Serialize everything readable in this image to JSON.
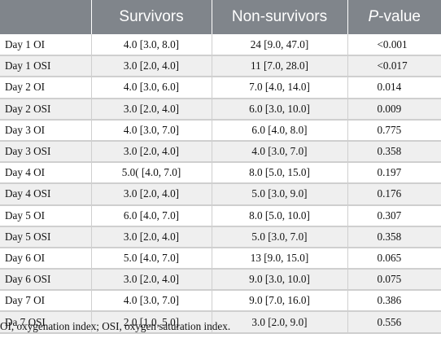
{
  "table": {
    "headers": {
      "col0": "",
      "col1": "Survivors",
      "col2": "Non-survivors",
      "col3_italic": "P",
      "col3_rest": "-value"
    },
    "rows": [
      {
        "label": "Day 1 OI",
        "survivors": "4.0 [3.0, 8.0]",
        "non_survivors": "24 [9.0, 47.0]",
        "p_value": "<0.001"
      },
      {
        "label": "Day 1 OSI",
        "survivors": "3.0 [2.0, 4.0]",
        "non_survivors": "11 [7.0, 28.0]",
        "p_value": "<0.017"
      },
      {
        "label": "Day 2 OI",
        "survivors": "4.0 [3.0, 6.0]",
        "non_survivors": "7.0 [4.0, 14.0]",
        "p_value": "0.014"
      },
      {
        "label": "Day 2 OSI",
        "survivors": "3.0 [2.0, 4.0]",
        "non_survivors": "6.0 [3.0, 10.0]",
        "p_value": "0.009"
      },
      {
        "label": "Day 3 OI",
        "survivors": "4.0 [3.0, 7.0]",
        "non_survivors": "6.0 [4.0, 8.0]",
        "p_value": "0.775"
      },
      {
        "label": "Day 3 OSI",
        "survivors": "3.0 [2.0, 4.0]",
        "non_survivors": "4.0 [3.0, 7.0]",
        "p_value": "0.358"
      },
      {
        "label": "Day 4 OI",
        "survivors": "5.0( [4.0, 7.0]",
        "non_survivors": "8.0 [5.0, 15.0]",
        "p_value": "0.197"
      },
      {
        "label": "Day 4 OSI",
        "survivors": "3.0 [2.0, 4.0]",
        "non_survivors": "5.0 [3.0, 9.0]",
        "p_value": "0.176"
      },
      {
        "label": "Day 5 OI",
        "survivors": "6.0 [4.0, 7.0]",
        "non_survivors": "8.0 [5.0, 10.0]",
        "p_value": "0.307"
      },
      {
        "label": "Day 5 OSI",
        "survivors": "3.0 [2.0, 4.0]",
        "non_survivors": "5.0 [3.0, 7.0]",
        "p_value": "0.358"
      },
      {
        "label": "Day 6 OI",
        "survivors": "5.0 [4.0, 7.0]",
        "non_survivors": "13 [9.0, 15.0]",
        "p_value": "0.065"
      },
      {
        "label": "Day 6 OSI",
        "survivors": "3.0 [2.0, 4.0]",
        "non_survivors": "9.0 [3.0, 10.0]",
        "p_value": "0.075"
      },
      {
        "label": "Day 7 OI",
        "survivors": "4.0 [3.0, 7.0]",
        "non_survivors": "9.0 [7.0, 16.0]",
        "p_value": "0.386"
      },
      {
        "label": "Da 7 OSI",
        "survivors": "2.0 [1.0, 5.0]",
        "non_survivors": "3.0 [2.0, 9.0]",
        "p_value": "0.556"
      }
    ]
  },
  "footnote": "OI, oxygenation index; OSI, oxygen saturation index.",
  "colors": {
    "header_bg": "#80858b",
    "header_text": "#ffffff",
    "alt_row_bg": "#efefef",
    "rule": "#cfcfcf"
  }
}
